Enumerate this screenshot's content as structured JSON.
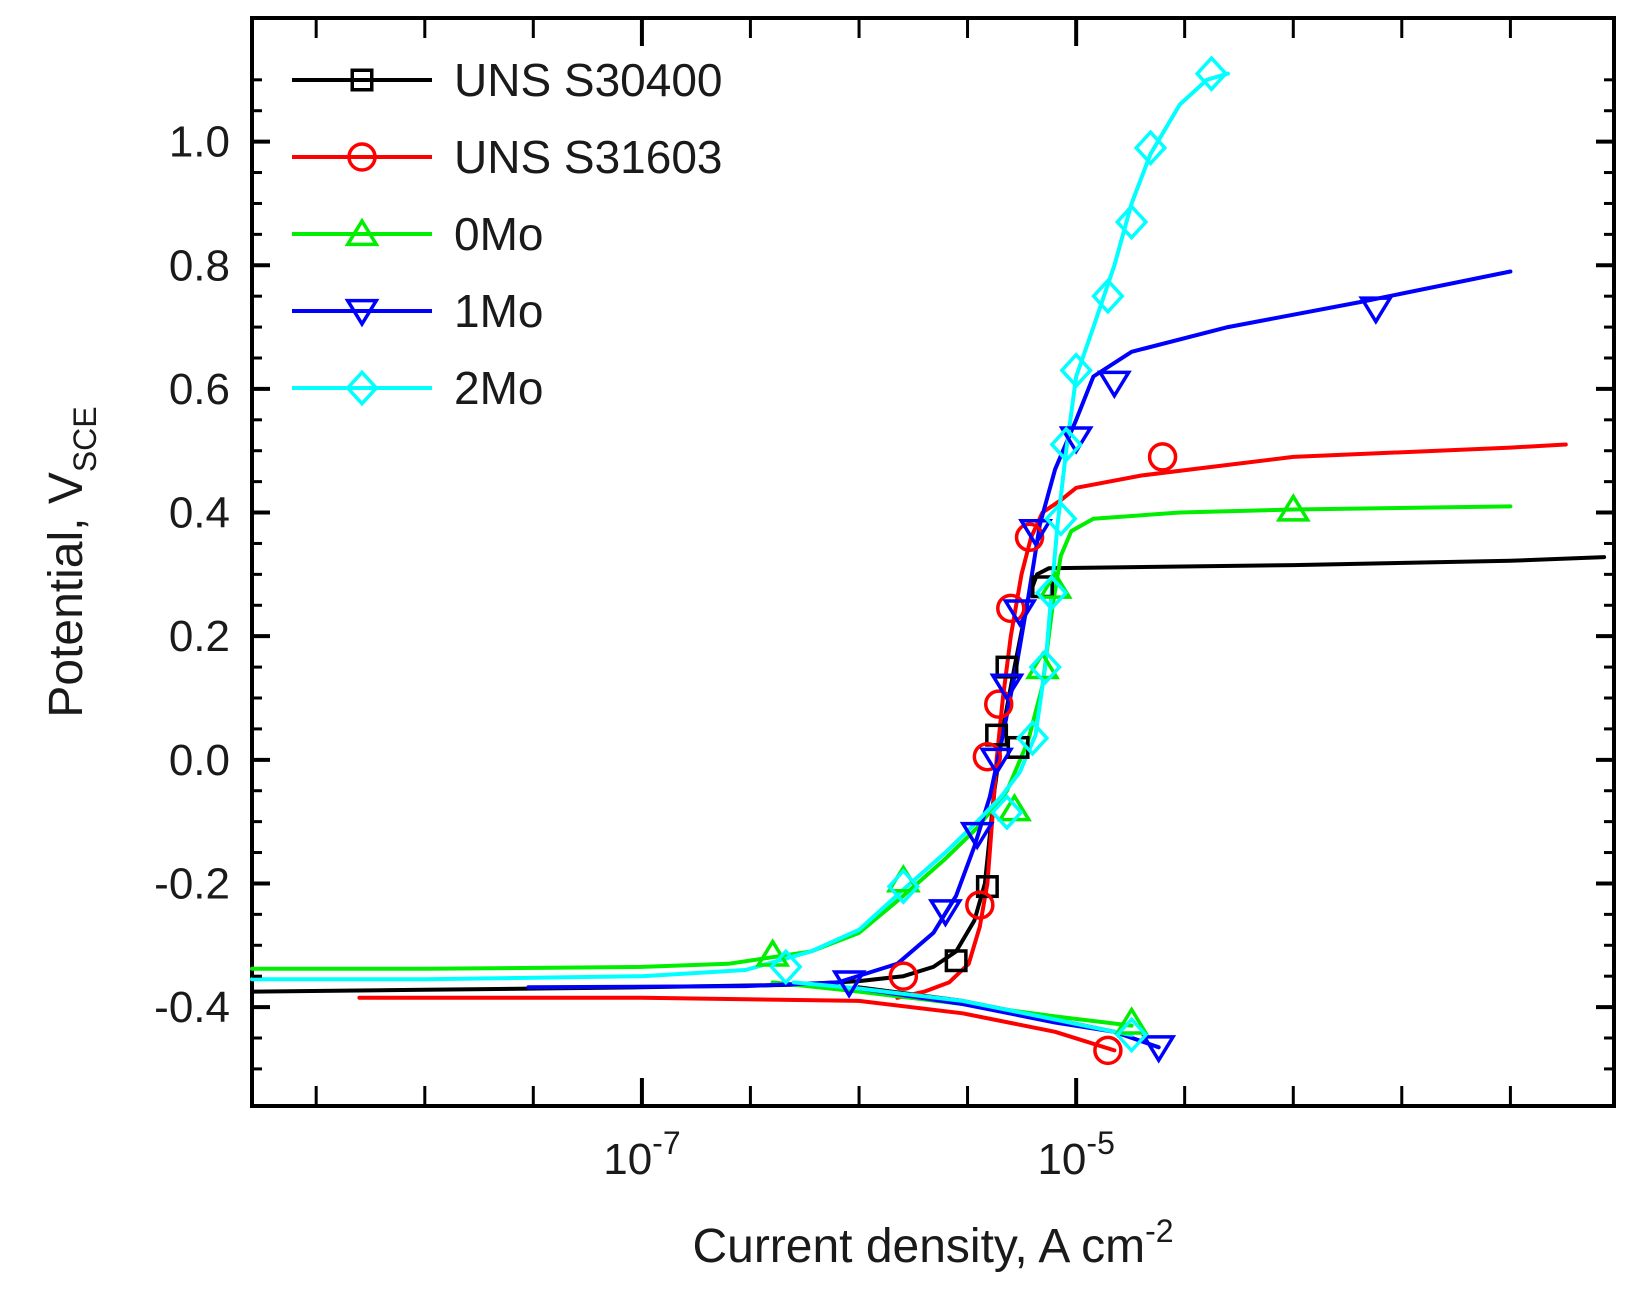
{
  "chart_data": {
    "type": "line",
    "xscale": "log",
    "xlabel": {
      "main": "Current density, A cm",
      "sup": "-2"
    },
    "ylabel": {
      "main": "Potential, V",
      "sub": "SCE"
    },
    "xlim": [
      1.6e-09,
      0.003
    ],
    "ylim": [
      -0.56,
      1.2
    ],
    "x_major_ticks": [
      {
        "value": 1e-07,
        "base": "10",
        "exp": "-7"
      },
      {
        "value": 1e-05,
        "base": "10",
        "exp": "-5"
      }
    ],
    "x_minor_ticks": [
      3.16e-09,
      1e-08,
      3.16e-08,
      3.16e-07,
      1e-06,
      3.16e-06,
      3.16e-05,
      0.0001,
      0.000316,
      0.001
    ],
    "y_ticks": [
      {
        "value": -0.4,
        "label": "-0.4"
      },
      {
        "value": -0.2,
        "label": "-0.2"
      },
      {
        "value": 0.0,
        "label": "0.0"
      },
      {
        "value": 0.2,
        "label": "0.2"
      },
      {
        "value": 0.4,
        "label": "0.4"
      },
      {
        "value": 0.6,
        "label": "0.6"
      },
      {
        "value": 0.8,
        "label": "0.8"
      },
      {
        "value": 1.0,
        "label": "1.0"
      }
    ],
    "legend_position": "top-left",
    "series": [
      {
        "name": "UNS S30400",
        "color": "#000000",
        "marker": "square",
        "anodic": [
          [
            1.6e-09,
            -0.375
          ],
          [
            1e-08,
            -0.372
          ],
          [
            1e-07,
            -0.368
          ],
          [
            5e-07,
            -0.364
          ],
          [
            1e-06,
            -0.358
          ],
          [
            1.6e-06,
            -0.35
          ],
          [
            2.2e-06,
            -0.335
          ],
          [
            2.8e-06,
            -0.31
          ],
          [
            3.4e-06,
            -0.26
          ],
          [
            3.8e-06,
            -0.2
          ],
          [
            4.2e-06,
            -0.05
          ],
          [
            4.6e-06,
            0.05
          ],
          [
            5.2e-06,
            0.15
          ],
          [
            6e-06,
            0.26
          ],
          [
            6.6e-06,
            0.3
          ],
          [
            7.5e-06,
            0.31
          ],
          [
            0.0001,
            0.315
          ],
          [
            0.001,
            0.322
          ],
          [
            0.0027,
            0.328
          ]
        ],
        "cathodic": [
          [
            1e-06,
            -0.368
          ],
          [
            3e-06,
            -0.39
          ],
          [
            8e-06,
            -0.42
          ],
          [
            1.5e-05,
            -0.44
          ]
        ],
        "markers": [
          [
            2.8e-06,
            -0.325
          ],
          [
            3.9e-06,
            -0.205
          ],
          [
            4.3e-06,
            0.04
          ],
          [
            4.8e-06,
            0.15
          ],
          [
            5.4e-06,
            0.02
          ],
          [
            7e-06,
            0.28
          ]
        ]
      },
      {
        "name": "UNS S31603",
        "color": "#ff0000",
        "marker": "circle",
        "anodic": [
          [
            1.5e-06,
            -0.385
          ],
          [
            2e-06,
            -0.375
          ],
          [
            2.6e-06,
            -0.36
          ],
          [
            3.2e-06,
            -0.33
          ],
          [
            3.6e-06,
            -0.27
          ],
          [
            3.9e-06,
            -0.2
          ],
          [
            4.1e-06,
            -0.1
          ],
          [
            4.3e-06,
            0.0
          ],
          [
            4.6e-06,
            0.1
          ],
          [
            5e-06,
            0.2
          ],
          [
            5.6e-06,
            0.3
          ],
          [
            6.2e-06,
            0.36
          ],
          [
            7e-06,
            0.4
          ],
          [
            8.5e-06,
            0.42
          ],
          [
            1e-05,
            0.44
          ],
          [
            2e-05,
            0.46
          ],
          [
            0.0001,
            0.49
          ],
          [
            0.001,
            0.505
          ],
          [
            0.0018,
            0.51
          ]
        ],
        "cathodic": [
          [
            5e-09,
            -0.385
          ],
          [
            1e-07,
            -0.385
          ],
          [
            1e-06,
            -0.39
          ],
          [
            3e-06,
            -0.41
          ],
          [
            8e-06,
            -0.44
          ],
          [
            1.5e-05,
            -0.47
          ]
        ],
        "markers": [
          [
            1.6e-06,
            -0.35
          ],
          [
            3.6e-06,
            -0.235
          ],
          [
            3.9e-06,
            0.005
          ],
          [
            4.4e-06,
            0.09
          ],
          [
            5e-06,
            0.245
          ],
          [
            6.1e-06,
            0.36
          ],
          [
            2.5e-05,
            0.49
          ],
          [
            1.4e-05,
            -0.47
          ]
        ]
      },
      {
        "name": "0Mo",
        "color": "#00ee00",
        "marker": "triangle-up",
        "anodic": [
          [
            1.6e-09,
            -0.338
          ],
          [
            1e-08,
            -0.338
          ],
          [
            1e-07,
            -0.335
          ],
          [
            2.5e-07,
            -0.33
          ],
          [
            6e-07,
            -0.31
          ],
          [
            1e-06,
            -0.28
          ],
          [
            1.6e-06,
            -0.22
          ],
          [
            2.5e-06,
            -0.16
          ],
          [
            3.5e-06,
            -0.11
          ],
          [
            4.8e-06,
            -0.05
          ],
          [
            6e-06,
            0.03
          ],
          [
            7e-06,
            0.12
          ],
          [
            7.8e-06,
            0.25
          ],
          [
            8.5e-06,
            0.33
          ],
          [
            9.5e-06,
            0.37
          ],
          [
            1.2e-05,
            0.39
          ],
          [
            3e-05,
            0.4
          ],
          [
            0.0001,
            0.405
          ],
          [
            0.001,
            0.41
          ]
        ],
        "cathodic": [
          [
            4e-07,
            -0.36
          ],
          [
            1e-06,
            -0.375
          ],
          [
            3e-06,
            -0.395
          ],
          [
            8e-06,
            -0.415
          ],
          [
            1.8e-05,
            -0.43
          ]
        ],
        "markers": [
          [
            4e-07,
            -0.315
          ],
          [
            1.6e-06,
            -0.195
          ],
          [
            5.2e-06,
            -0.08
          ],
          [
            7e-06,
            0.15
          ],
          [
            8e-06,
            0.28
          ],
          [
            0.0001,
            0.405
          ],
          [
            1.8e-05,
            -0.425
          ]
        ]
      },
      {
        "name": "1Mo",
        "color": "#0000ff",
        "marker": "triangle-down",
        "anodic": [
          [
            3e-08,
            -0.368
          ],
          [
            3e-07,
            -0.366
          ],
          [
            8e-07,
            -0.36
          ],
          [
            1.5e-06,
            -0.33
          ],
          [
            2.2e-06,
            -0.28
          ],
          [
            2.8e-06,
            -0.22
          ],
          [
            3.4e-06,
            -0.14
          ],
          [
            4e-06,
            -0.06
          ],
          [
            4.6e-06,
            0.04
          ],
          [
            5.3e-06,
            0.15
          ],
          [
            6e-06,
            0.26
          ],
          [
            6.8e-06,
            0.38
          ],
          [
            8e-06,
            0.47
          ],
          [
            1e-05,
            0.55
          ],
          [
            1.2e-05,
            0.62
          ],
          [
            1.8e-05,
            0.66
          ],
          [
            5e-05,
            0.7
          ],
          [
            0.0002,
            0.74
          ],
          [
            0.001,
            0.79
          ]
        ],
        "cathodic": [
          [
            1e-06,
            -0.37
          ],
          [
            3e-06,
            -0.395
          ],
          [
            8e-06,
            -0.425
          ],
          [
            1.5e-05,
            -0.44
          ],
          [
            2.4e-05,
            -0.465
          ]
        ],
        "markers": [
          [
            9e-07,
            -0.36
          ],
          [
            2.5e-06,
            -0.245
          ],
          [
            3.5e-06,
            -0.12
          ],
          [
            4.3e-06,
            0.0
          ],
          [
            4.8e-06,
            0.12
          ],
          [
            5.5e-06,
            0.24
          ],
          [
            6.5e-06,
            0.37
          ],
          [
            1e-05,
            0.52
          ],
          [
            1.5e-05,
            0.61
          ],
          [
            0.00024,
            0.73
          ],
          [
            2.4e-05,
            -0.465
          ]
        ]
      },
      {
        "name": "2Mo",
        "color": "#00ffff",
        "marker": "diamond",
        "anodic": [
          [
            1.6e-09,
            -0.355
          ],
          [
            1e-08,
            -0.355
          ],
          [
            1e-07,
            -0.35
          ],
          [
            3e-07,
            -0.34
          ],
          [
            6e-07,
            -0.31
          ],
          [
            1e-06,
            -0.275
          ],
          [
            1.6e-06,
            -0.21
          ],
          [
            2.5e-06,
            -0.15
          ],
          [
            3.5e-06,
            -0.1
          ],
          [
            4.5e-06,
            -0.06
          ],
          [
            5.5e-06,
            -0.02
          ],
          [
            6.5e-06,
            0.04
          ],
          [
            7.2e-06,
            0.15
          ],
          [
            7.7e-06,
            0.27
          ],
          [
            8.2e-06,
            0.38
          ],
          [
            9e-06,
            0.5
          ],
          [
            1e-05,
            0.62
          ],
          [
            1.2e-05,
            0.7
          ],
          [
            1.5e-05,
            0.8
          ],
          [
            1.8e-05,
            0.9
          ],
          [
            2.2e-05,
            0.98
          ],
          [
            3e-05,
            1.06
          ],
          [
            4e-05,
            1.1
          ],
          [
            5e-05,
            1.11
          ]
        ],
        "cathodic": [
          [
            5e-07,
            -0.36
          ],
          [
            1e-06,
            -0.37
          ],
          [
            3e-06,
            -0.39
          ],
          [
            8e-06,
            -0.42
          ],
          [
            1.5e-05,
            -0.44
          ],
          [
            1.8e-05,
            -0.445
          ]
        ],
        "markers": [
          [
            4.6e-07,
            -0.335
          ],
          [
            1.6e-06,
            -0.205
          ],
          [
            4.8e-06,
            -0.085
          ],
          [
            6.3e-06,
            0.035
          ],
          [
            7.2e-06,
            0.15
          ],
          [
            7.7e-06,
            0.27
          ],
          [
            8.5e-06,
            0.39
          ],
          [
            9e-06,
            0.51
          ],
          [
            1e-05,
            0.63
          ],
          [
            1.4e-05,
            0.75
          ],
          [
            1.8e-05,
            0.87
          ],
          [
            2.2e-05,
            0.99
          ],
          [
            4.2e-05,
            1.11
          ],
          [
            1.8e-05,
            -0.445
          ]
        ]
      }
    ]
  }
}
